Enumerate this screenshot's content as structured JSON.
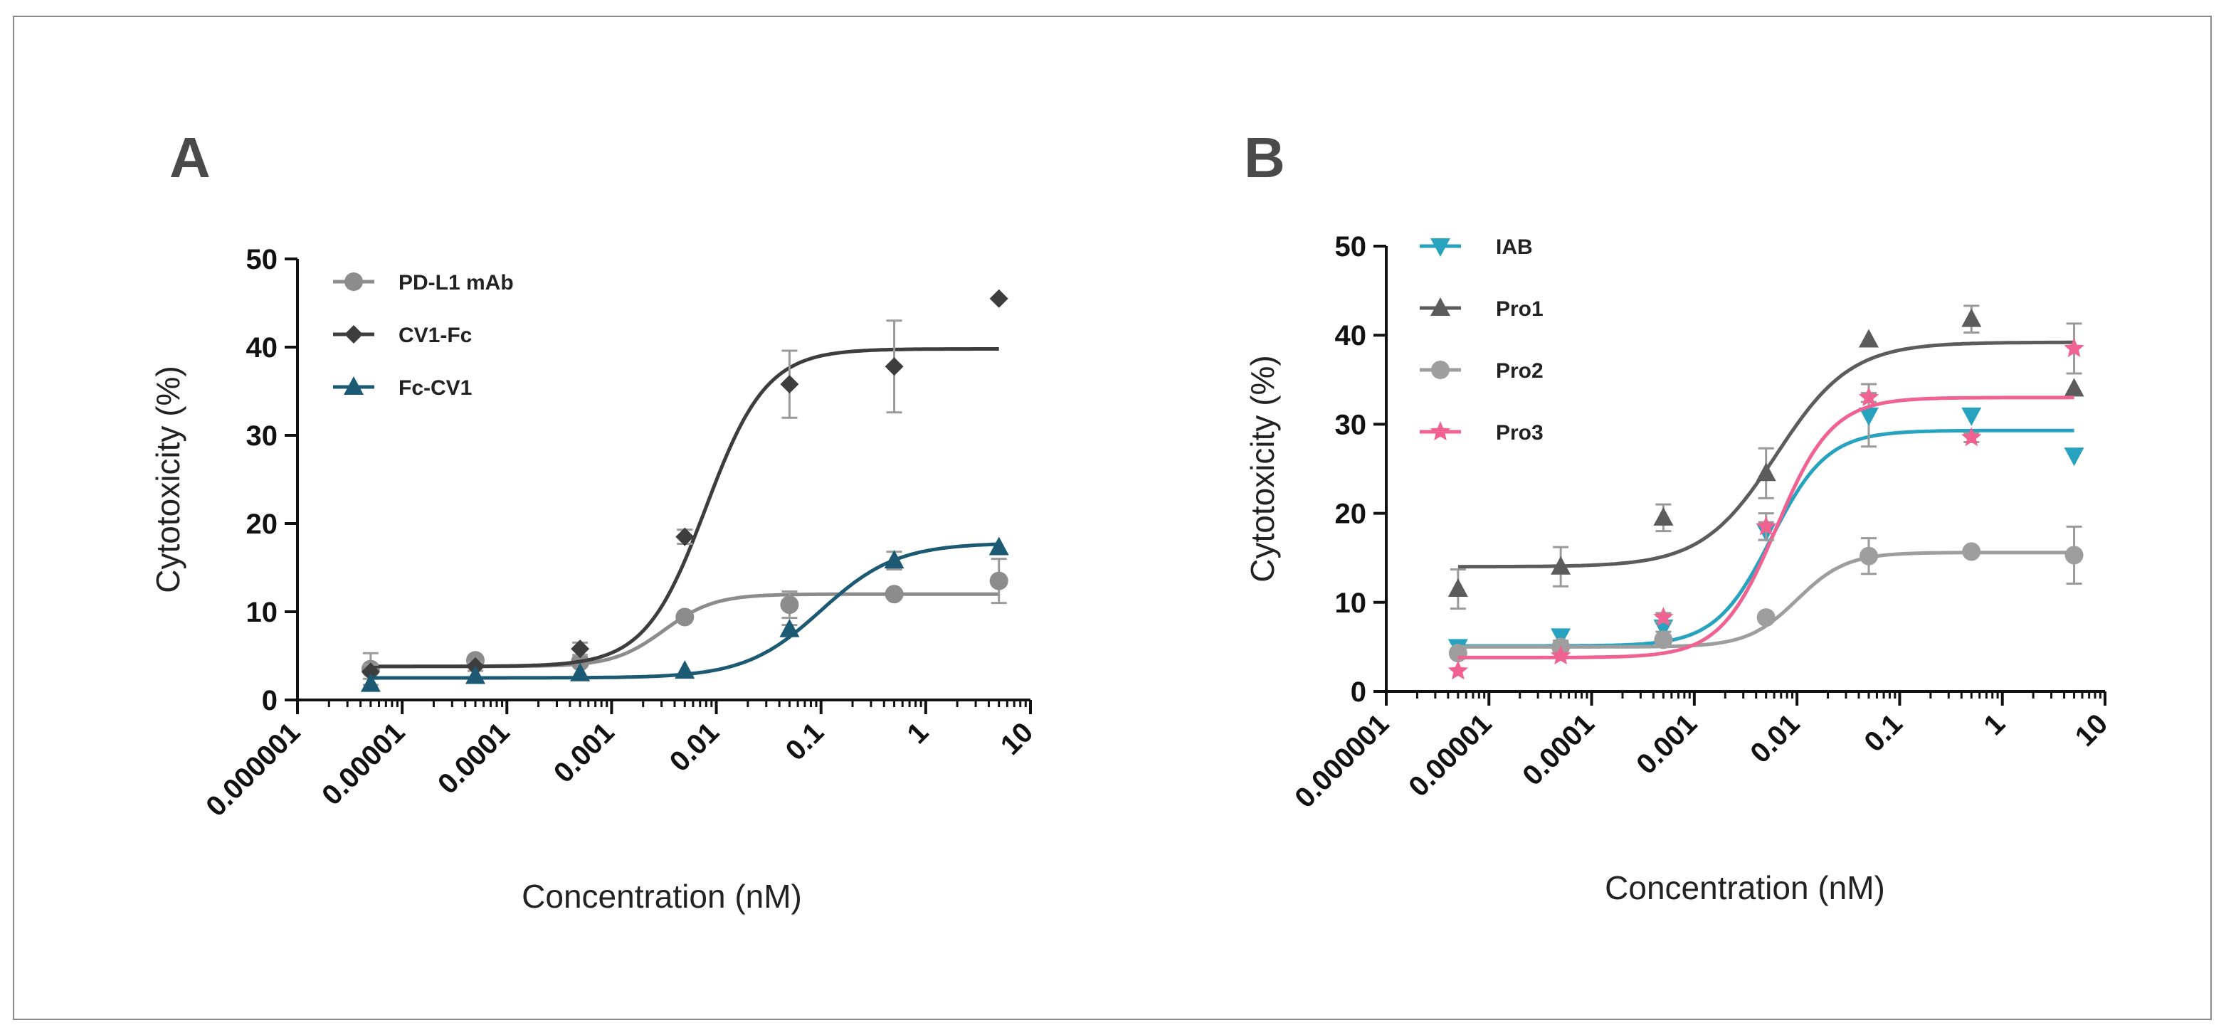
{
  "chart_data": [
    {
      "type": "line",
      "panel_label": "A",
      "xlabel": "Concentration (nM)",
      "ylabel": "Cytotoxicity (%)",
      "xscale": "log",
      "xlim": [
        1e-06,
        10
      ],
      "ylim": [
        0,
        50
      ],
      "x_tick_labels": [
        "0.000001",
        "0.00001",
        "0.0001",
        "0.001",
        "0.01",
        "0.1",
        "1",
        "10"
      ],
      "y_tick_labels": [
        "0",
        "10",
        "20",
        "30",
        "40",
        "50"
      ],
      "legend_position": "top-left",
      "series": [
        {
          "name": "PD-L1 mAb",
          "color": "#8c8c8c",
          "marker": "circle",
          "x": [
            5e-06,
            5e-05,
            0.0005,
            0.005,
            0.05,
            0.5,
            5
          ],
          "values": [
            3.5,
            4.5,
            4.3,
            9.4,
            10.8,
            12.0,
            13.5
          ],
          "errors": [
            1.8,
            0.3,
            0.5,
            0.4,
            1.5,
            0.3,
            2.5
          ],
          "fit": {
            "bottom": 3.8,
            "top": 12.0,
            "logEC50": -2.5,
            "hill": 1.8
          }
        },
        {
          "name": "CV1-Fc",
          "color": "#3d3d3d",
          "marker": "diamond",
          "x": [
            5e-06,
            5e-05,
            0.0005,
            0.005,
            0.05,
            0.5,
            5
          ],
          "values": [
            3.2,
            3.8,
            5.8,
            18.5,
            35.8,
            37.8,
            45.5
          ],
          "errors": [
            0.8,
            0.5,
            0.7,
            0.8,
            3.8,
            5.2,
            0.3
          ],
          "fit": {
            "bottom": 3.8,
            "top": 39.8,
            "logEC50": -2.1,
            "hill": 1.5
          }
        },
        {
          "name": "Fc-CV1",
          "color": "#1c5a74",
          "marker": "triangle",
          "x": [
            5e-06,
            5e-05,
            0.0005,
            0.005,
            0.05,
            0.5,
            5
          ],
          "values": [
            1.8,
            2.7,
            3.0,
            3.3,
            8.0,
            15.8,
            17.3
          ],
          "errors": [
            0.2,
            0.2,
            0.2,
            0.2,
            0.5,
            1.0,
            0.2
          ],
          "fit": {
            "bottom": 2.5,
            "top": 17.8,
            "logEC50": -1.0,
            "hill": 1.2
          }
        }
      ]
    },
    {
      "type": "line",
      "panel_label": "B",
      "xlabel": "Concentration (nM)",
      "ylabel": "Cytotoxicity (%)",
      "xscale": "log",
      "xlim": [
        1e-06,
        10
      ],
      "ylim": [
        0,
        50
      ],
      "x_tick_labels": [
        "0.000001",
        "0.00001",
        "0.0001",
        "0.001",
        "0.01",
        "0.1",
        "1",
        "10"
      ],
      "y_tick_labels": [
        "0",
        "10",
        "20",
        "30",
        "40",
        "50"
      ],
      "legend_position": "top-left",
      "series": [
        {
          "name": "IAB",
          "color": "#27a3bf",
          "marker": "triangle-down",
          "x": [
            5e-06,
            5e-05,
            0.0005,
            0.005,
            0.05,
            0.5,
            5
          ],
          "values": [
            5.0,
            6.2,
            7.2,
            18.0,
            31.0,
            31.0,
            26.5
          ],
          "errors": [
            0.5,
            0.5,
            0.5,
            1.0,
            3.5,
            0.3,
            0.3
          ],
          "fit": {
            "bottom": 5.1,
            "top": 29.3,
            "logEC50": -2.25,
            "hill": 1.6
          }
        },
        {
          "name": "Pro1",
          "color": "#5c5c5c",
          "marker": "triangle",
          "x": [
            5e-06,
            5e-05,
            0.0005,
            0.005,
            0.05,
            0.5,
            5
          ],
          "values": [
            11.5,
            14.0,
            19.5,
            24.5,
            39.5,
            41.8,
            34.0
          ],
          "errors": [
            2.2,
            2.2,
            1.5,
            2.8,
            0.3,
            1.5,
            0.3
          ],
          "fit": {
            "bottom": 14.0,
            "top": 39.2,
            "logEC50": -2.2,
            "hill": 1.2
          }
        },
        {
          "name": "Pro2",
          "color": "#9e9e9e",
          "marker": "circle",
          "x": [
            5e-06,
            5e-05,
            0.0005,
            0.005,
            0.05,
            0.5,
            5
          ],
          "values": [
            4.3,
            5.0,
            5.8,
            8.3,
            15.2,
            15.7,
            15.3
          ],
          "errors": [
            0.5,
            0.5,
            0.5,
            0.5,
            2.0,
            0.3,
            3.2
          ],
          "fit": {
            "bottom": 5.0,
            "top": 15.6,
            "logEC50": -2.0,
            "hill": 1.8
          }
        },
        {
          "name": "Pro3",
          "color": "#f06292",
          "marker": "star",
          "x": [
            5e-06,
            5e-05,
            0.0005,
            0.005,
            0.05,
            0.5,
            5
          ],
          "values": [
            2.3,
            4.0,
            8.3,
            18.5,
            33.0,
            28.5,
            38.5
          ],
          "errors": [
            0.3,
            0.3,
            0.5,
            1.5,
            0.5,
            0.5,
            2.8
          ],
          "fit": {
            "bottom": 3.8,
            "top": 33.0,
            "logEC50": -2.2,
            "hill": 1.6
          }
        }
      ]
    }
  ]
}
